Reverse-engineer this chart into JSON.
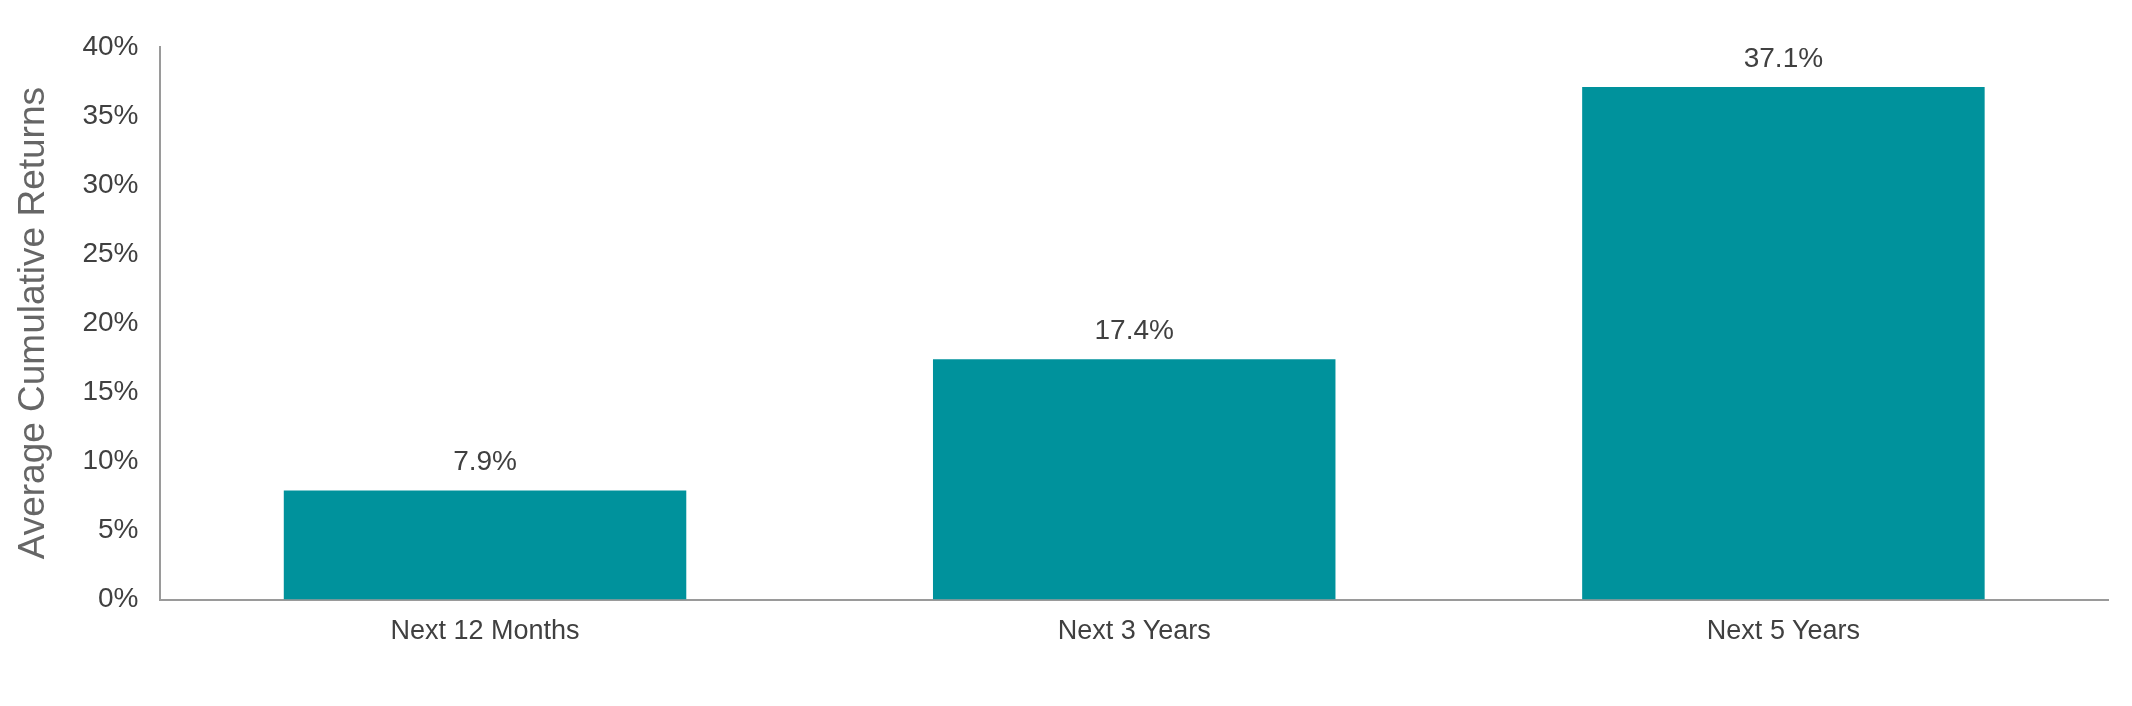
{
  "chart_data": {
    "type": "bar",
    "ylabel": "Average Cumulative Returns",
    "categories": [
      "Next 12 Months",
      "Next 3 Years",
      "Next 5 Years"
    ],
    "values": [
      7.9,
      17.4,
      37.1
    ],
    "value_labels": [
      "7.9%",
      "17.4%",
      "37.1%"
    ],
    "color": "#00929c",
    "ylim": [
      0,
      40
    ],
    "yticks": [
      {
        "value": 0,
        "label": "0%"
      },
      {
        "value": 5,
        "label": "5%"
      },
      {
        "value": 10,
        "label": "10%"
      },
      {
        "value": 15,
        "label": "15%"
      },
      {
        "value": 20,
        "label": "20%"
      },
      {
        "value": 25,
        "label": "25%"
      },
      {
        "value": 30,
        "label": "30%"
      },
      {
        "value": 35,
        "label": "35%"
      },
      {
        "value": 40,
        "label": "40%"
      }
    ],
    "grid": false,
    "legend": false
  }
}
